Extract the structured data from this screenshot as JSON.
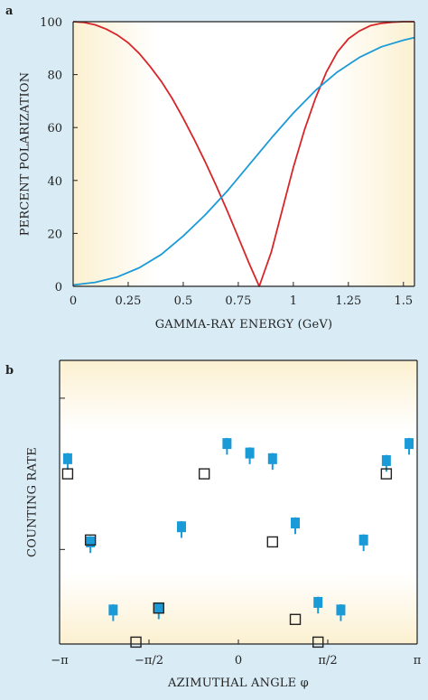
{
  "panels": {
    "a": {
      "label": "a"
    },
    "b": {
      "label": "b"
    }
  },
  "colors": {
    "background": "#d9ecf6",
    "plot_fill_edge": "#fbf0d0",
    "plot_fill_center": "#ffffff",
    "red_curve": "#d7262a",
    "blue_curve": "#1b9ad8",
    "open_marker": "#222222"
  },
  "chart_data": [
    {
      "type": "line",
      "panel": "a",
      "title": "",
      "xlabel": "GAMMA-RAY ENERGY (GeV)",
      "ylabel": "PERCENT POLARIZATION",
      "xlim": [
        0,
        1.55
      ],
      "ylim": [
        0,
        100
      ],
      "x_ticks": [
        0,
        0.25,
        0.5,
        0.75,
        1,
        1.25,
        1.5
      ],
      "x_tick_labels": [
        "0",
        "0.25",
        "0.5",
        "0.75",
        "1",
        "1.25",
        "1.5"
      ],
      "y_ticks": [
        0,
        20,
        40,
        60,
        80,
        100
      ],
      "y_tick_labels": [
        "0",
        "20",
        "40",
        "60",
        "80",
        "100"
      ],
      "grid": false,
      "series": [
        {
          "color": "red",
          "x": [
            0,
            0.05,
            0.1,
            0.15,
            0.2,
            0.25,
            0.3,
            0.35,
            0.4,
            0.45,
            0.5,
            0.55,
            0.6,
            0.65,
            0.7,
            0.75,
            0.8,
            0.845,
            0.9,
            0.95,
            1.0,
            1.05,
            1.1,
            1.15,
            1.2,
            1.25,
            1.3,
            1.35,
            1.4,
            1.45,
            1.5,
            1.55
          ],
          "y": [
            100,
            99.7,
            98.8,
            97.2,
            95,
            92,
            88,
            83,
            77.5,
            71,
            63.5,
            55.5,
            47,
            38,
            28.5,
            18.5,
            8.5,
            0,
            13,
            29,
            45,
            59,
            71,
            81,
            88.5,
            93.5,
            96.5,
            98.5,
            99.4,
            99.8,
            100,
            100
          ]
        },
        {
          "color": "blue",
          "x": [
            0,
            0.1,
            0.2,
            0.3,
            0.4,
            0.5,
            0.6,
            0.7,
            0.8,
            0.9,
            1.0,
            1.1,
            1.2,
            1.3,
            1.4,
            1.5,
            1.55
          ],
          "y": [
            0.5,
            1.5,
            3.5,
            7,
            12,
            19,
            27,
            36,
            46,
            56,
            65.5,
            74,
            81,
            86.5,
            90.5,
            93,
            94
          ]
        }
      ]
    },
    {
      "type": "scatter",
      "panel": "b",
      "title": "",
      "xlabel": "AZIMUTHAL ANGLE φ",
      "ylabel": "COUNTING RATE",
      "xlim": [
        -3.1416,
        3.1416
      ],
      "ylim": [
        0,
        1.5
      ],
      "x_ticks": [
        -3.1416,
        -1.5708,
        0,
        1.5708,
        3.1416
      ],
      "x_tick_labels": [
        "−π",
        "−π/2",
        "0",
        "π/2",
        "π"
      ],
      "y_ticks": [
        0.5,
        1.3
      ],
      "grid": false,
      "series": [
        {
          "marker": "filled-square",
          "color": "blue",
          "x": [
            -3.0,
            -2.6,
            -2.2,
            -1.4,
            -1.0,
            -0.2,
            0.2,
            0.6,
            1.0,
            1.4,
            1.8,
            2.2,
            2.6,
            3.0
          ],
          "y": [
            0.98,
            0.54,
            0.18,
            0.19,
            0.62,
            1.06,
            1.01,
            0.98,
            0.64,
            0.22,
            0.18,
            0.55,
            0.97,
            1.06
          ],
          "err": [
            0.03,
            0.03,
            0.03,
            0.03,
            0.03,
            0.03,
            0.03,
            0.03,
            0.03,
            0.03,
            0.03,
            0.03,
            0.03,
            0.03
          ]
        },
        {
          "marker": "open-square",
          "color": "black",
          "x": [
            -3.0,
            -2.6,
            -1.8,
            -1.4,
            -0.6,
            0.6,
            1.0,
            1.4,
            2.6
          ],
          "y": [
            0.9,
            0.55,
            0.01,
            0.19,
            0.9,
            0.54,
            0.13,
            0.01,
            0.9
          ]
        }
      ]
    }
  ]
}
